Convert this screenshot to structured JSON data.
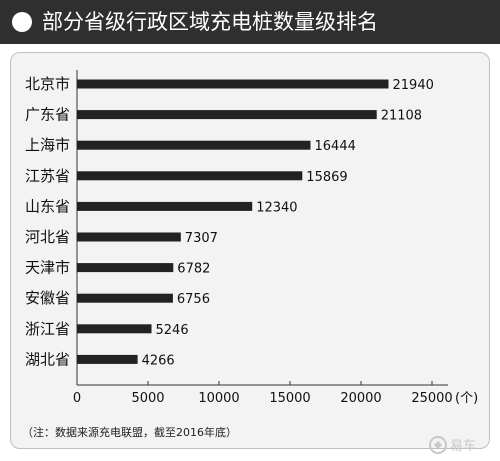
{
  "title": "部分省级行政区域充电桩数量级排名",
  "note": "（注：数据来源充电联盟，截至2016年底）",
  "watermark": "易车",
  "colors": {
    "bar": "#222222",
    "title_bg": "#2f2f2f",
    "plot_bg": "#f3f3f3"
  },
  "chart_data": {
    "type": "bar",
    "orientation": "horizontal",
    "categories": [
      "北京市",
      "广东省",
      "上海市",
      "江苏省",
      "山东省",
      "河北省",
      "天津市",
      "安徽省",
      "浙江省",
      "湖北省"
    ],
    "values": [
      21940,
      21108,
      16444,
      15869,
      12340,
      7307,
      6782,
      6756,
      5246,
      4266
    ],
    "data_labels": [
      "21940",
      "21108",
      "16444",
      "15869",
      "12340",
      "7307",
      "6782",
      "6756",
      "5246",
      "4266"
    ],
    "x_ticks": [
      0,
      5000,
      10000,
      15000,
      20000,
      25000
    ],
    "x_tick_labels": [
      "0",
      "5000",
      "10000",
      "15000",
      "20000",
      "25000"
    ],
    "x_unit": "(个)",
    "xlim": [
      0,
      25000
    ],
    "grid": false
  }
}
